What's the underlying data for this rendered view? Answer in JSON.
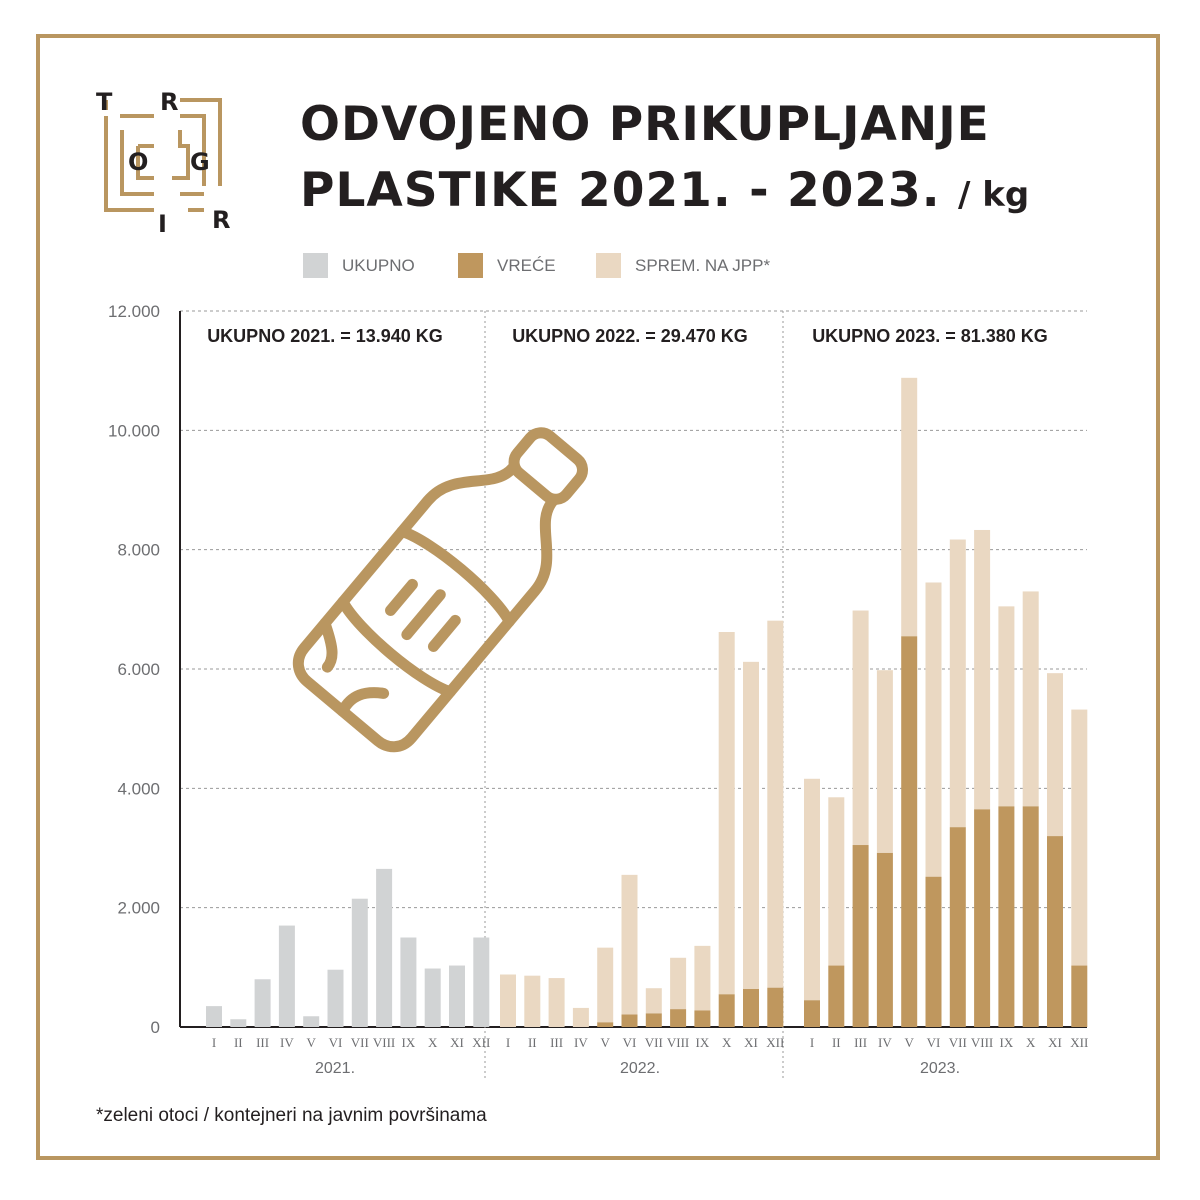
{
  "title": {
    "line1": "ODVOJENO PRIKUPLJANJE",
    "line2": "PLASTIKE 2021. - 2023.",
    "unit": "/ kg"
  },
  "logo": {
    "letters": [
      "T",
      "R",
      "O",
      "G",
      "I",
      "R"
    ]
  },
  "legend": [
    {
      "label": "UKUPNO",
      "color": "#d1d3d4"
    },
    {
      "label": "VREĆE",
      "color": "#bf975e"
    },
    {
      "label": "SPREM. NA JPP*",
      "color": "#ead8c2"
    }
  ],
  "footnote": "*zeleni otoci / kontejneri na javnim površinama",
  "colors": {
    "accent": "#b99660",
    "ukupno": "#d1d3d4",
    "vrece": "#bf975e",
    "sprem": "#ead8c2",
    "text": "#231f20",
    "muted": "#6d6e71"
  },
  "icon": "plastic-bottle-icon",
  "chart_data": {
    "type": "bar",
    "stacked": true,
    "ylim": [
      0,
      12000
    ],
    "yticks": [
      "0",
      "2.000",
      "4.000",
      "6.000",
      "8.000",
      "10.000",
      "12.000"
    ],
    "grid": true,
    "legend_position": "top",
    "months": [
      "I",
      "II",
      "III",
      "IV",
      "V",
      "VI",
      "VII",
      "VIII",
      "IX",
      "X",
      "XI",
      "XII"
    ],
    "groups": [
      {
        "year": "2021.",
        "total_label": "UKUPNO 2021. = 13.940 KG",
        "series": [
          {
            "name": "UKUPNO",
            "values": [
              350,
              130,
              800,
              1700,
              180,
              960,
              2150,
              2650,
              1500,
              980,
              1030,
              1500
            ]
          }
        ]
      },
      {
        "year": "2022.",
        "total_label": "UKUPNO 2022. = 29.470 KG",
        "series": [
          {
            "name": "VREĆE",
            "values": [
              0,
              0,
              0,
              0,
              80,
              210,
              230,
              300,
              280,
              550,
              640,
              660
            ]
          },
          {
            "name": "SPREM. NA JPP*",
            "values": [
              880,
              860,
              820,
              320,
              1250,
              2340,
              420,
              860,
              1080,
              6070,
              5480,
              6150
            ]
          }
        ]
      },
      {
        "year": "2023.",
        "total_label": "UKUPNO 2023. = 81.380 KG",
        "series": [
          {
            "name": "VREĆE",
            "values": [
              450,
              1030,
              3050,
              2920,
              6550,
              2520,
              3350,
              3650,
              3700,
              3700,
              3200,
              1030
            ]
          },
          {
            "name": "SPREM. NA JPP*",
            "values": [
              3710,
              2820,
              3930,
              3060,
              4330,
              4930,
              4820,
              4680,
              3350,
              3600,
              2730,
              4290
            ]
          }
        ]
      }
    ]
  }
}
